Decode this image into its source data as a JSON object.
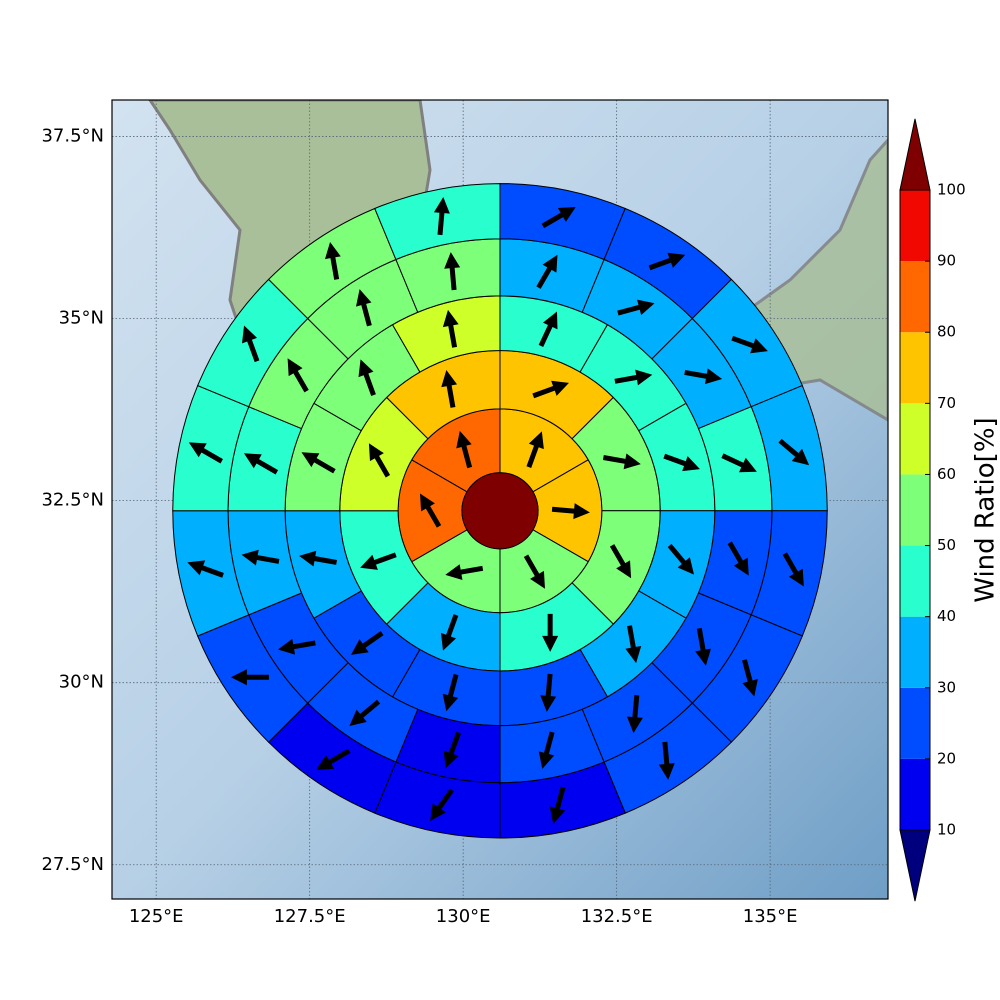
{
  "chart_data": {
    "type": "polar-sectors",
    "xlim": [
      124.28,
      136.92
    ],
    "ylim": [
      27.03,
      38.0
    ],
    "xticks": [
      {
        "value": 125,
        "label": "125°E"
      },
      {
        "value": 127.5,
        "label": "127.5°E"
      },
      {
        "value": 130,
        "label": "130°E"
      },
      {
        "value": 132.5,
        "label": "132.5°E"
      },
      {
        "value": 135,
        "label": "135°E"
      }
    ],
    "yticks": [
      {
        "value": 27.5,
        "label": "27.5°N"
      },
      {
        "value": 30,
        "label": "30°N"
      },
      {
        "value": 32.5,
        "label": "32.5°N"
      },
      {
        "value": 35,
        "label": "35°N"
      },
      {
        "value": 37.5,
        "label": "37.5°N"
      }
    ],
    "grid": true,
    "center": [
      130.6,
      32.36
    ],
    "radii": [
      0.62,
      1.66,
      2.61,
      3.5,
      4.43,
      5.33
    ],
    "center_value": 105,
    "rings": [
      {
        "values": [
          75,
          75,
          55,
          55,
          85,
          85
        ],
        "directions": [
          20,
          95,
          150,
          260,
          330,
          345
        ]
      },
      {
        "values": [
          75,
          55,
          55,
          45,
          35,
          45,
          65,
          75
        ],
        "directions": [
          70,
          100,
          150,
          180,
          200,
          250,
          330,
          350
        ]
      },
      {
        "values": [
          45,
          45,
          45,
          35,
          35,
          25,
          25,
          25,
          35,
          55,
          55,
          65
        ],
        "directions": [
          25,
          80,
          110,
          140,
          170,
          185,
          195,
          235,
          280,
          300,
          340,
          350
        ]
      },
      {
        "values": [
          35,
          35,
          35,
          45,
          25,
          25,
          25,
          25,
          15,
          25,
          25,
          35,
          45,
          55,
          55,
          55
        ],
        "directions": [
          30,
          75,
          100,
          115,
          150,
          170,
          185,
          195,
          200,
          230,
          260,
          280,
          300,
          330,
          345,
          355
        ]
      },
      {
        "values": [
          25,
          25,
          35,
          35,
          25,
          25,
          25,
          15,
          15,
          15,
          25,
          35,
          45,
          45,
          55,
          45
        ],
        "directions": [
          60,
          70,
          110,
          130,
          150,
          165,
          175,
          195,
          215,
          240,
          270,
          290,
          300,
          340,
          350,
          5
        ]
      }
    ],
    "colorbar": {
      "label": "Wind Ratio[%]",
      "ticks": [
        10,
        20,
        30,
        40,
        50,
        60,
        70,
        80,
        90,
        100
      ],
      "colors": [
        "#00007f",
        "#0000f1",
        "#004cff",
        "#00b0ff",
        "#29ffce",
        "#7dff7a",
        "#ceff29",
        "#ffc400",
        "#ff6800",
        "#f10800",
        "#7f0000"
      ]
    }
  }
}
